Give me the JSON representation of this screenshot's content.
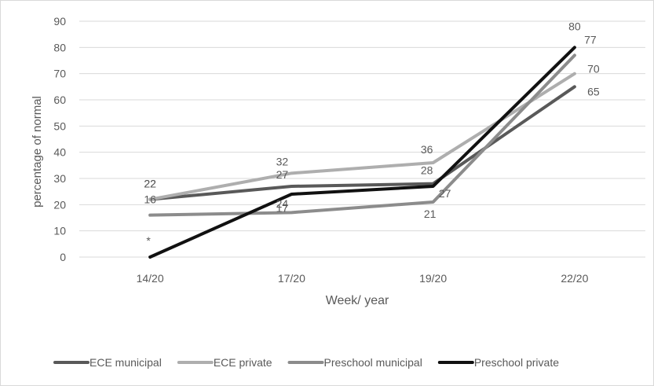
{
  "chart_data": {
    "type": "line",
    "title": "",
    "xlabel": "Week/ year",
    "ylabel": "percentage of normal",
    "categories": [
      "14/20",
      "17/20",
      "19/20",
      "22/20"
    ],
    "ylim": [
      0,
      90
    ],
    "yticks": [
      0,
      10,
      20,
      30,
      40,
      50,
      60,
      70,
      80,
      90
    ],
    "grid": true,
    "legend_position": "bottom",
    "series": [
      {
        "name": "ECE municipal",
        "values": [
          22,
          27,
          28,
          65
        ],
        "color": "#595959"
      },
      {
        "name": "ECE private",
        "values": [
          22,
          32,
          36,
          70
        ],
        "color": "#aeaeae"
      },
      {
        "name": "Preschool municipal",
        "values": [
          16,
          17,
          21,
          77
        ],
        "color": "#8c8c8c"
      },
      {
        "name": "Preschool private",
        "values": [
          0,
          24,
          27,
          80
        ],
        "color": "#111111"
      }
    ],
    "data_labels": [
      {
        "series": 0,
        "index": 0,
        "text": "22"
      },
      {
        "series": 0,
        "index": 1,
        "text": "27"
      },
      {
        "series": 0,
        "index": 2,
        "text": "28"
      },
      {
        "series": 0,
        "index": 3,
        "text": "65"
      },
      {
        "series": 1,
        "index": 0,
        "text": "22"
      },
      {
        "series": 1,
        "index": 1,
        "text": "32"
      },
      {
        "series": 1,
        "index": 2,
        "text": "36"
      },
      {
        "series": 1,
        "index": 3,
        "text": "70"
      },
      {
        "series": 2,
        "index": 0,
        "text": "16"
      },
      {
        "series": 2,
        "index": 1,
        "text": "17"
      },
      {
        "series": 2,
        "index": 2,
        "text": "21"
      },
      {
        "series": 2,
        "index": 3,
        "text": "77"
      },
      {
        "series": 3,
        "index": 0,
        "text": "*"
      },
      {
        "series": 3,
        "index": 1,
        "text": "24"
      },
      {
        "series": 3,
        "index": 2,
        "text": "27"
      },
      {
        "series": 3,
        "index": 3,
        "text": "80"
      }
    ]
  }
}
